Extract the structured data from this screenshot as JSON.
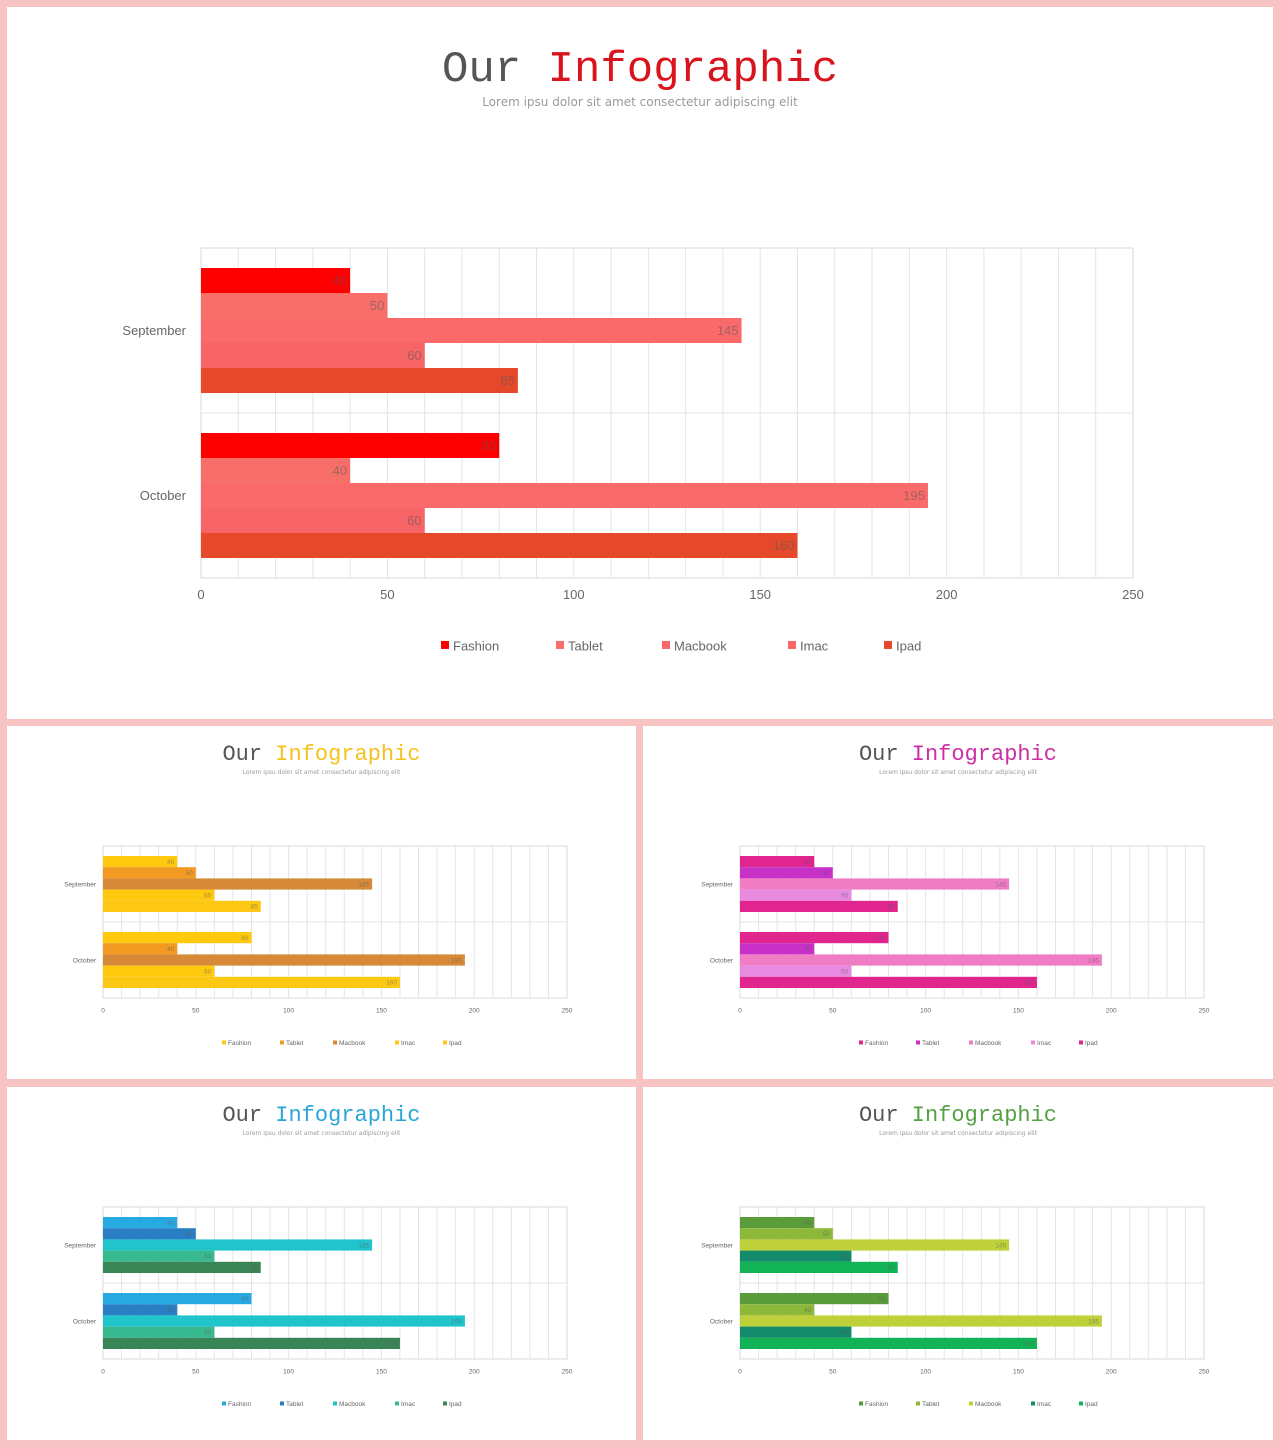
{
  "chart_data": [
    {
      "type": "bar",
      "orientation": "horizontal",
      "title_part1": "Our",
      "title_part2": "Infographic",
      "subtitle": "Lorem ipsu dolor sit amet consectetur adipiscing elit",
      "accent": "#d9141c",
      "categories": [
        "September",
        "October"
      ],
      "xlim": [
        0,
        250
      ],
      "xticks": [
        0,
        50,
        100,
        150,
        200,
        250
      ],
      "grid": true,
      "legend_position": "bottom",
      "series": [
        {
          "name": "Fashion",
          "values": [
            40,
            80
          ],
          "color": "#ff0000"
        },
        {
          "name": "Tablet",
          "values": [
            50,
            40
          ],
          "color": "#f86f6a"
        },
        {
          "name": "Macbook",
          "values": [
            145,
            195
          ],
          "color": "#fa6a6a"
        },
        {
          "name": "Imac",
          "values": [
            60,
            60
          ],
          "color": "#f76465"
        },
        {
          "name": "Ipad",
          "values": [
            85,
            160
          ],
          "color": "#e6492a"
        }
      ]
    },
    {
      "type": "bar",
      "orientation": "horizontal",
      "title_part1": "Our",
      "title_part2": "Infographic",
      "subtitle": "Lorem ipsu dolor sit amet consectetur adipiscing elit",
      "accent": "#f4c21e",
      "categories": [
        "September",
        "October"
      ],
      "xlim": [
        0,
        250
      ],
      "xticks": [
        0,
        50,
        100,
        150,
        200,
        250
      ],
      "grid": true,
      "legend_position": "bottom",
      "series": [
        {
          "name": "Fashion",
          "values": [
            40,
            80
          ],
          "color": "#ffc90e"
        },
        {
          "name": "Tablet",
          "values": [
            50,
            40
          ],
          "color": "#f29a22"
        },
        {
          "name": "Macbook",
          "values": [
            145,
            195
          ],
          "color": "#d68a38"
        },
        {
          "name": "Imac",
          "values": [
            60,
            60
          ],
          "color": "#ffc90e"
        },
        {
          "name": "Ipad",
          "values": [
            85,
            160
          ],
          "color": "#fcc814"
        }
      ]
    },
    {
      "type": "bar",
      "orientation": "horizontal",
      "title_part1": "Our",
      "title_part2": "Infographic",
      "subtitle": "Lorem ipsu dolor sit amet consectetur adipiscing elit",
      "accent": "#cc2fa3",
      "categories": [
        "September",
        "October"
      ],
      "xlim": [
        0,
        250
      ],
      "xticks": [
        0,
        50,
        100,
        150,
        200,
        250
      ],
      "grid": true,
      "legend_position": "bottom",
      "series": [
        {
          "name": "Fashion",
          "values": [
            40,
            80
          ],
          "color": "#e0258f"
        },
        {
          "name": "Tablet",
          "values": [
            50,
            40
          ],
          "color": "#c831c8"
        },
        {
          "name": "Macbook",
          "values": [
            145,
            195
          ],
          "color": "#f07cc4"
        },
        {
          "name": "Imac",
          "values": [
            60,
            60
          ],
          "color": "#e88ae0"
        },
        {
          "name": "Ipad",
          "values": [
            85,
            160
          ],
          "color": "#e0258f"
        }
      ]
    },
    {
      "type": "bar",
      "orientation": "horizontal",
      "title_part1": "Our",
      "title_part2": "Infographic",
      "subtitle": "Lorem ipsu dolor sit amet consectetur adipiscing elit",
      "accent": "#2aa6d6",
      "categories": [
        "September",
        "October"
      ],
      "xlim": [
        0,
        250
      ],
      "xticks": [
        0,
        50,
        100,
        150,
        200,
        250
      ],
      "grid": true,
      "legend_position": "bottom",
      "series": [
        {
          "name": "Fashion",
          "values": [
            40,
            80
          ],
          "color": "#27aae1"
        },
        {
          "name": "Tablet",
          "values": [
            50,
            40
          ],
          "color": "#2a7fc4"
        },
        {
          "name": "Macbook",
          "values": [
            145,
            195
          ],
          "color": "#22c4cc"
        },
        {
          "name": "Imac",
          "values": [
            60,
            60
          ],
          "color": "#39b98f"
        },
        {
          "name": "Ipad",
          "values": [
            85,
            160
          ],
          "color": "#3a8556"
        }
      ]
    },
    {
      "type": "bar",
      "orientation": "horizontal",
      "title_part1": "Our",
      "title_part2": "Infographic",
      "subtitle": "Lorem ipsu dolor sit amet consectetur adipiscing elit",
      "accent": "#55a042",
      "categories": [
        "September",
        "October"
      ],
      "xlim": [
        0,
        250
      ],
      "xticks": [
        0,
        50,
        100,
        150,
        200,
        250
      ],
      "grid": true,
      "legend_position": "bottom",
      "series": [
        {
          "name": "Fashion",
          "values": [
            40,
            80
          ],
          "color": "#5a9b3a"
        },
        {
          "name": "Tablet",
          "values": [
            50,
            40
          ],
          "color": "#8db83a"
        },
        {
          "name": "Macbook",
          "values": [
            145,
            195
          ],
          "color": "#bfd13a"
        },
        {
          "name": "Imac",
          "values": [
            60,
            60
          ],
          "color": "#138a6a"
        },
        {
          "name": "Ipad",
          "values": [
            85,
            160
          ],
          "color": "#12b257"
        }
      ]
    }
  ]
}
